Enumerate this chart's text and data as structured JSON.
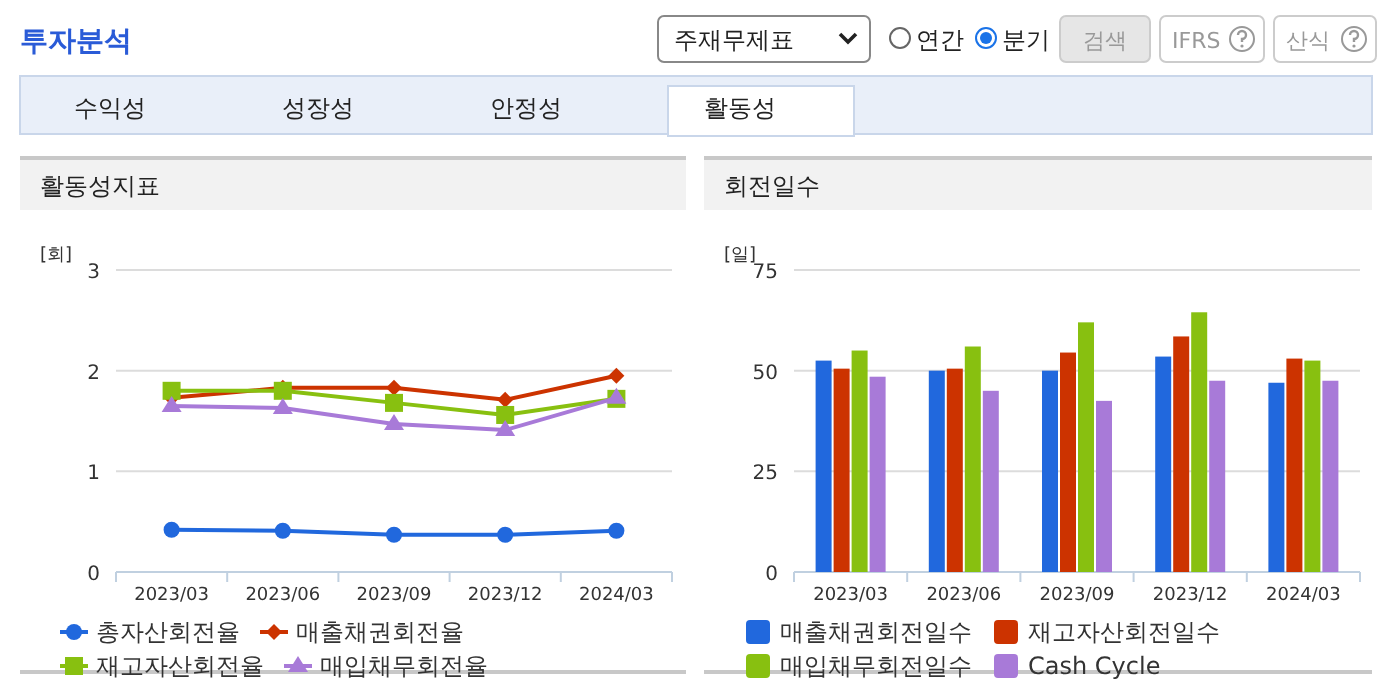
{
  "chart_data": [
    {
      "type": "other",
      "title": "투자분석",
      "annotations": [
        "주재무제표",
        "연간",
        "분기",
        "검색",
        "IFRS",
        "산식",
        "수익성",
        "성장성",
        "안정성",
        "활동성"
      ]
    },
    {
      "type": "line",
      "title": "활동성지표",
      "ylabel": "[회]",
      "categories": [
        "2023/03",
        "2023/06",
        "2023/09",
        "2023/12",
        "2024/03"
      ],
      "ylim": [
        0,
        3
      ],
      "yticks": [
        0,
        1,
        2,
        3
      ],
      "grid": "y",
      "legend": "bottom",
      "line_style": "solid",
      "series": [
        {
          "name": "총자산회전율",
          "color": "#2168dd",
          "marker": "circle",
          "values": [
            0.42,
            0.41,
            0.37,
            0.37,
            0.41
          ]
        },
        {
          "name": "매출채권회전율",
          "color": "#cc3300",
          "marker": "diamond",
          "values": [
            1.73,
            1.83,
            1.83,
            1.71,
            1.95
          ]
        },
        {
          "name": "재고자산회전율",
          "color": "#88c010",
          "marker": "square",
          "values": [
            1.8,
            1.8,
            1.68,
            1.56,
            1.72
          ]
        },
        {
          "name": "매입채무회전율",
          "color": "#a87ad8",
          "marker": "triangle",
          "values": [
            1.65,
            1.63,
            1.47,
            1.41,
            1.73
          ]
        }
      ]
    },
    {
      "type": "bar",
      "title": "회전일수",
      "ylabel": "[일]",
      "categories": [
        "2023/03",
        "2023/06",
        "2023/09",
        "2023/12",
        "2024/03"
      ],
      "ylim": [
        0,
        75
      ],
      "yticks": [
        0,
        25,
        50,
        75
      ],
      "grid": "y",
      "legend": "bottom",
      "series": [
        {
          "name": "매출채권회전일수",
          "color": "#2168dd",
          "values": [
            52.5,
            50,
            50,
            53.5,
            47
          ]
        },
        {
          "name": "재고자산회전일수",
          "color": "#cc3300",
          "values": [
            50.5,
            50.5,
            54.5,
            58.5,
            53
          ]
        },
        {
          "name": "매입채무회전일수",
          "color": "#88c010",
          "values": [
            55,
            56,
            62,
            64.5,
            52.5
          ]
        },
        {
          "name": "Cash Cycle",
          "color": "#a87ad8",
          "values": [
            48.5,
            45,
            42.5,
            47.5,
            47.5
          ]
        }
      ]
    }
  ]
}
